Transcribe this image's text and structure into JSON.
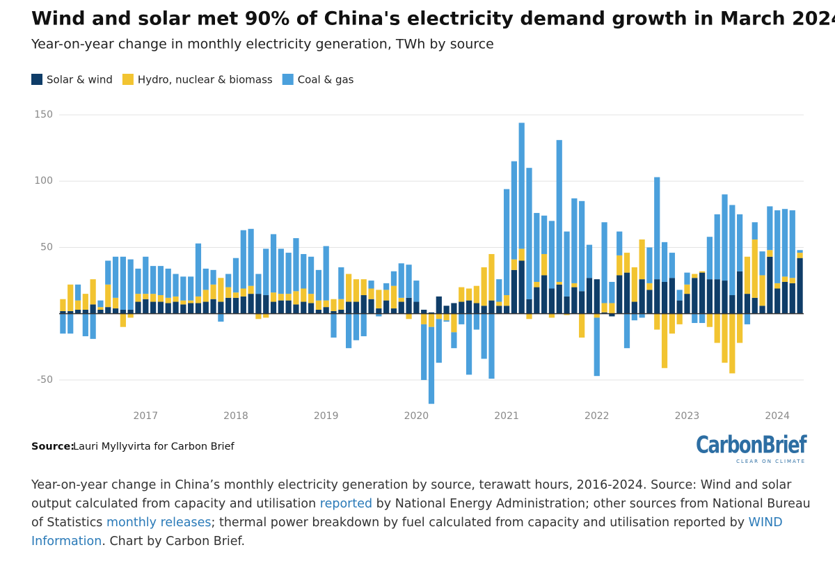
{
  "chart_data": {
    "type": "bar",
    "stacked": true,
    "title": "Wind and solar met 90% of China's electricity demand growth in March 2024",
    "subtitle": "Year-on-year change in monthly electricity generation, TWh by source",
    "categories": [
      null,
      null,
      null,
      null,
      null,
      null,
      null,
      null,
      null,
      null,
      null,
      "2017",
      null,
      null,
      null,
      null,
      null,
      null,
      null,
      null,
      null,
      null,
      null,
      "2018",
      null,
      null,
      null,
      null,
      null,
      null,
      null,
      null,
      null,
      null,
      null,
      "2019",
      null,
      null,
      null,
      null,
      null,
      null,
      null,
      null,
      null,
      null,
      null,
      "2020",
      null,
      null,
      null,
      null,
      null,
      null,
      null,
      null,
      null,
      null,
      null,
      "2021",
      null,
      null,
      null,
      null,
      null,
      null,
      null,
      null,
      null,
      null,
      null,
      "2022",
      null,
      null,
      null,
      null,
      null,
      null,
      null,
      null,
      null,
      null,
      null,
      "2023",
      null,
      null,
      null,
      null,
      null,
      null,
      null,
      null,
      null,
      null,
      null,
      "2024",
      null,
      null,
      null
    ],
    "series": [
      {
        "name": "Solar & wind",
        "color": "#0f3d68",
        "values": [
          2,
          2,
          3,
          3,
          7,
          3,
          5,
          4,
          3,
          3,
          9,
          11,
          9,
          9,
          8,
          9,
          7,
          8,
          8,
          9,
          11,
          9,
          12,
          12,
          13,
          15,
          15,
          14,
          9,
          10,
          10,
          7,
          9,
          8,
          3,
          5,
          2,
          3,
          9,
          9,
          14,
          11,
          4,
          10,
          4,
          9,
          12,
          9,
          3,
          1,
          13,
          6,
          8,
          9,
          10,
          8,
          6,
          10,
          6,
          6,
          33,
          40,
          11,
          20,
          29,
          19,
          22,
          13,
          20,
          17,
          27,
          26,
          1,
          -2,
          29,
          31,
          9,
          26,
          18,
          26,
          24,
          27,
          10,
          15,
          27,
          31,
          26,
          26,
          25,
          14,
          32,
          15,
          12,
          6,
          43,
          19,
          24,
          23,
          42
        ]
      },
      {
        "name": "Hydro, nuclear & biomass",
        "color": "#f2c431",
        "values": [
          9,
          20,
          7,
          12,
          19,
          2,
          17,
          8,
          -10,
          -3,
          6,
          4,
          6,
          5,
          4,
          4,
          3,
          2,
          5,
          9,
          11,
          18,
          8,
          4,
          6,
          6,
          -4,
          -3,
          7,
          5,
          5,
          10,
          10,
          7,
          7,
          5,
          9,
          8,
          21,
          17,
          12,
          8,
          14,
          8,
          17,
          3,
          -4,
          0,
          -8,
          -10,
          -4,
          -5,
          -14,
          11,
          9,
          13,
          29,
          35,
          3,
          8,
          8,
          9,
          -4,
          4,
          16,
          -3,
          2,
          -1,
          3,
          -18,
          0,
          -3,
          7,
          8,
          15,
          15,
          26,
          30,
          5,
          -12,
          -41,
          -15,
          -8,
          7,
          3,
          1,
          -10,
          -22,
          -37,
          -45,
          -22,
          28,
          44,
          23,
          5,
          4,
          4,
          4,
          4
        ]
      },
      {
        "name": "Coal & gas",
        "color": "#4ba0dc",
        "values": [
          -15,
          -15,
          12,
          -17,
          -19,
          5,
          18,
          31,
          40,
          38,
          19,
          28,
          21,
          22,
          22,
          17,
          18,
          18,
          40,
          16,
          11,
          -6,
          10,
          26,
          44,
          43,
          15,
          35,
          44,
          34,
          31,
          40,
          26,
          28,
          23,
          41,
          -18,
          24,
          -26,
          -20,
          -17,
          6,
          -2,
          5,
          11,
          26,
          25,
          16,
          -42,
          -58,
          -33,
          -1,
          -12,
          -8,
          -46,
          -12,
          -34,
          -49,
          17,
          80,
          74,
          95,
          99,
          52,
          29,
          51,
          107,
          49,
          64,
          68,
          25,
          -44,
          61,
          16,
          18,
          -26,
          -5,
          -3,
          27,
          77,
          30,
          19,
          8,
          9,
          -7,
          -7,
          32,
          49,
          65,
          68,
          43,
          -8,
          13,
          18,
          33,
          55,
          51,
          51,
          2
        ]
      }
    ],
    "ylim": [
      -70,
      150
    ],
    "yticks": [
      -50,
      50,
      100,
      150
    ],
    "grid": true
  },
  "source_label": "Source:",
  "source": "Lauri Myllyvirta for Carbon Brief",
  "logo": "CarbonBrief",
  "tagline": "CLEAR ON CLIMATE",
  "caption": [
    "Year-on-year change in China’s monthly electricity generation by source, terawatt hours, 2016-2024. Source: Wind and solar output calculated from capacity and utilisation ",
    "reported",
    " by National Energy Administration; other sources from National Bureau of Statistics ",
    "monthly releases",
    "; thermal power breakdown by fuel calculated from capacity and utilisation reported by ",
    "WIND Information",
    ". Chart by Carbon Brief."
  ]
}
